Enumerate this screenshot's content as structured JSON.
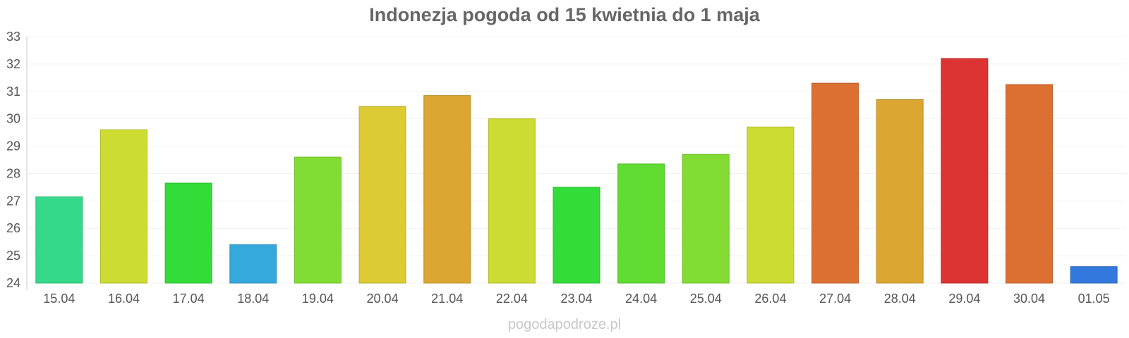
{
  "chart_data": {
    "type": "bar",
    "title": "Indonezja pogoda od 15 kwietnia do 1 maja",
    "xlabel": "",
    "ylabel": "",
    "ylim": [
      24,
      33
    ],
    "yticks": [
      24,
      25,
      26,
      27,
      28,
      29,
      30,
      31,
      32,
      33
    ],
    "grid": true,
    "categories": [
      "15.04",
      "16.04",
      "17.04",
      "18.04",
      "19.04",
      "20.04",
      "21.04",
      "22.04",
      "23.04",
      "24.04",
      "25.04",
      "26.04",
      "27.04",
      "28.04",
      "29.04",
      "30.04",
      "01.05"
    ],
    "values": [
      27.15,
      29.6,
      27.65,
      25.4,
      28.6,
      30.45,
      30.85,
      30.0,
      27.5,
      28.35,
      28.7,
      29.7,
      31.3,
      30.7,
      32.2,
      31.25,
      24.6
    ],
    "colors": [
      "#36d98a",
      "#cddc32",
      "#33dc38",
      "#36a9dc",
      "#83dc33",
      "#dccb33",
      "#dca633",
      "#cddc32",
      "#33dc38",
      "#60dc33",
      "#83dc33",
      "#cddc32",
      "#dc7033",
      "#dca633",
      "#dc3333",
      "#dc7033",
      "#3378dc"
    ]
  },
  "watermark": "pogodapodroze.pl"
}
